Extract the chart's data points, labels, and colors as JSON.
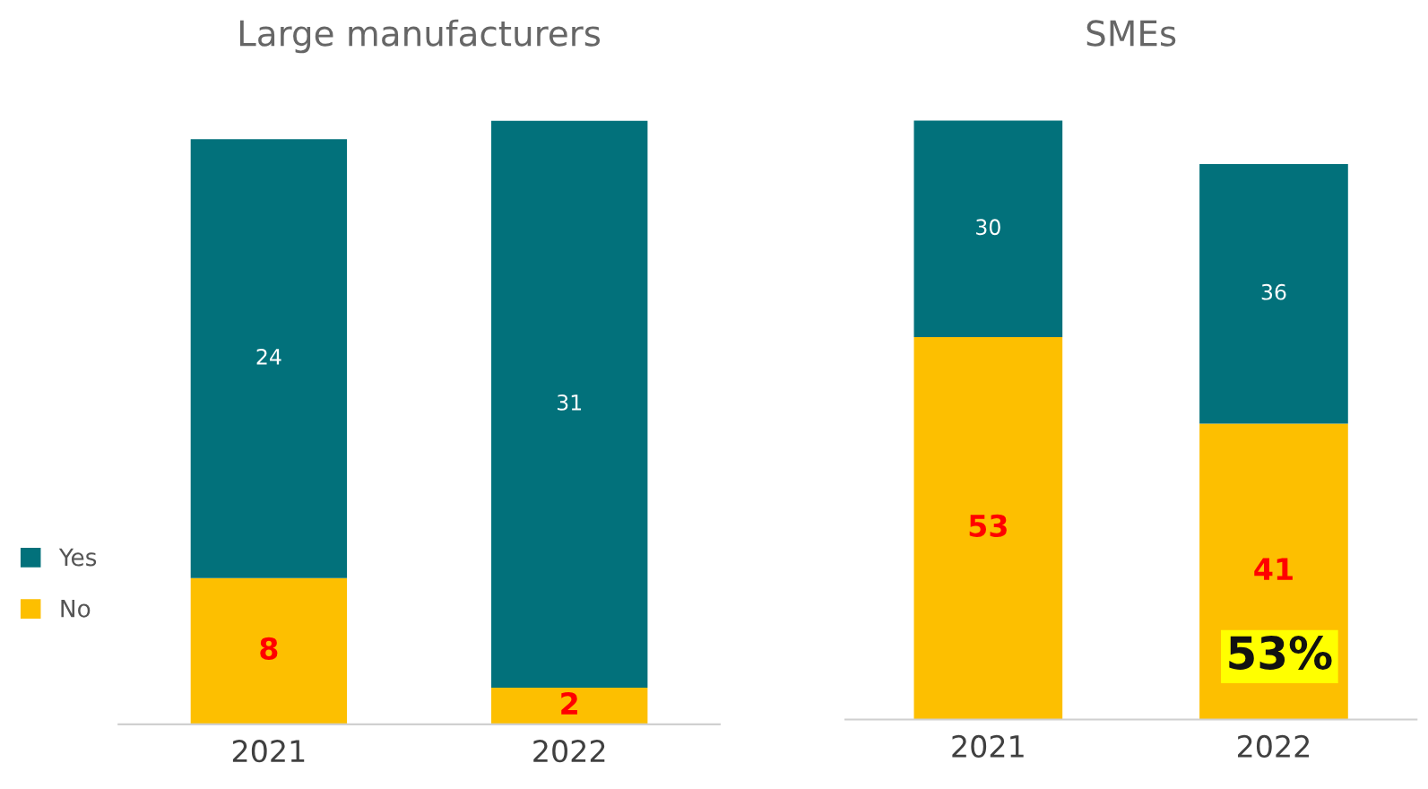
{
  "chart_data": [
    {
      "type": "bar",
      "title": "Large manufacturers",
      "categories": [
        "2021",
        "2022"
      ],
      "stacked": true,
      "data_labels": true,
      "legend": "left",
      "series": [
        {
          "name": "No",
          "color": "#fdbf00",
          "values": [
            8,
            2
          ]
        },
        {
          "name": "Yes",
          "color": "#02717b",
          "values": [
            24,
            31
          ]
        }
      ]
    },
    {
      "type": "bar",
      "title": "SMEs",
      "categories": [
        "2021",
        "2022"
      ],
      "stacked": true,
      "data_labels": true,
      "legend": false,
      "annotations": [
        "53%"
      ],
      "series": [
        {
          "color": "#fdbf00",
          "values": [
            53,
            41
          ]
        },
        {
          "color": "#02717b",
          "values": [
            30,
            36
          ]
        }
      ]
    }
  ]
}
